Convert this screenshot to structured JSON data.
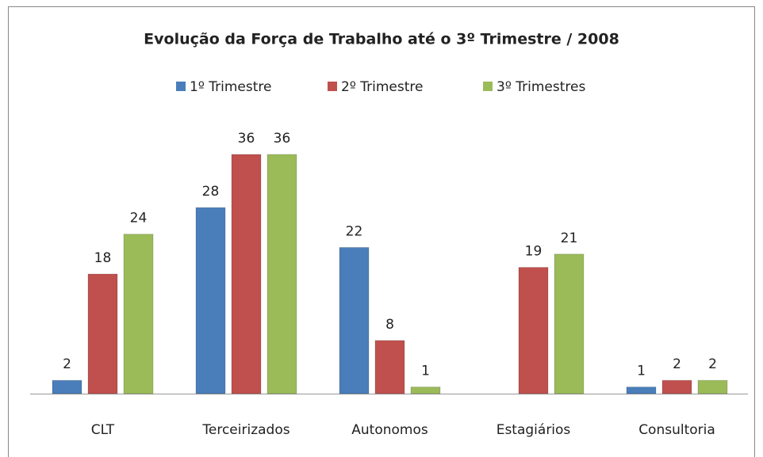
{
  "chart_data": {
    "type": "bar",
    "title": "Evolução da Força de Trabalho até o 3º Trimestre / 2008",
    "categories": [
      "CLT",
      "Terceirizados",
      "Autonomos",
      "Estagiários",
      "Consultoria"
    ],
    "series": [
      {
        "name": "1º Trimestre",
        "color": "#4a7ebb",
        "values": [
          2,
          28,
          22,
          null,
          1
        ]
      },
      {
        "name": "2º Trimestre",
        "color": "#c0504d",
        "values": [
          18,
          36,
          8,
          19,
          2
        ]
      },
      {
        "name": "3º Trimestres",
        "color": "#9bbb59",
        "values": [
          24,
          36,
          1,
          21,
          2
        ]
      }
    ],
    "legend": "top"
  }
}
